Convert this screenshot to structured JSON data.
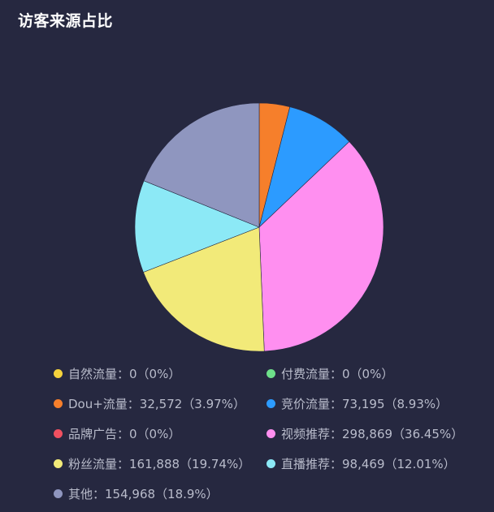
{
  "title": "访客来源占比",
  "chart_data": {
    "type": "pie",
    "title": "访客来源占比",
    "legend_position": "bottom",
    "slices": [
      {
        "name": "自然流量",
        "value": 0,
        "percent": "0%",
        "color": "#f5d23c"
      },
      {
        "name": "付费流量",
        "value": 0,
        "percent": "0%",
        "color": "#6ee08a"
      },
      {
        "name": "Dou+流量",
        "value": 32572,
        "percent": "3.97%",
        "color": "#f67f2b"
      },
      {
        "name": "竞价流量",
        "value": 73195,
        "percent": "8.93%",
        "color": "#2c9bff"
      },
      {
        "name": "品牌广告",
        "value": 0,
        "percent": "0%",
        "color": "#f05060"
      },
      {
        "name": "视频推荐",
        "value": 298869,
        "percent": "36.45%",
        "color": "#ff8ff0"
      },
      {
        "name": "粉丝流量",
        "value": 161888,
        "percent": "19.74%",
        "color": "#f2ea79"
      },
      {
        "name": "直播推荐",
        "value": 98469,
        "percent": "12.01%",
        "color": "#8ce9f6"
      },
      {
        "name": "其他",
        "value": 154968,
        "percent": "18.9%",
        "color": "#8f96bf"
      }
    ],
    "legend_labels": [
      "自然流量：0（0%）",
      "付费流量：0（0%）",
      "Dou+流量：32,572（3.97%）",
      "竞价流量：73,195（8.93%）",
      "品牌广告：0（0%）",
      "视频推荐：298,869（36.45%）",
      "粉丝流量：161,888（19.74%）",
      "直播推荐：98,469（12.01%）",
      "其他：154,968（18.9%）"
    ]
  }
}
